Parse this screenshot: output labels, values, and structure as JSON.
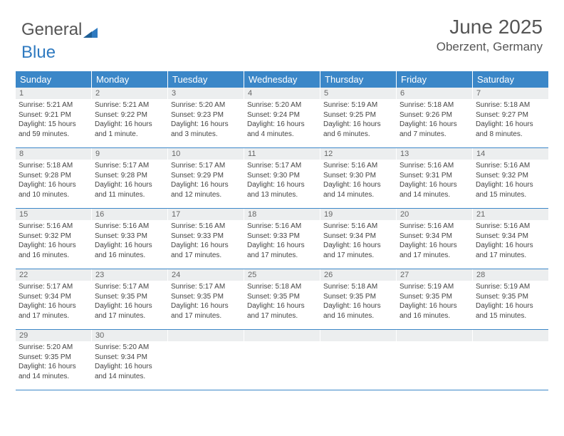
{
  "logo": {
    "part1": "General",
    "part2": "Blue",
    "tri_color": "#2f7ac0"
  },
  "header": {
    "title": "June 2025",
    "location": "Oberzent, Germany"
  },
  "colors": {
    "header_bg": "#3b87c8",
    "header_text": "#ffffff",
    "daynum_bg": "#eceeef",
    "daynum_text": "#666666",
    "body_text": "#444444",
    "rule": "#3b87c8"
  },
  "weekdays": [
    "Sunday",
    "Monday",
    "Tuesday",
    "Wednesday",
    "Thursday",
    "Friday",
    "Saturday"
  ],
  "days": [
    {
      "n": "1",
      "sr": "5:21 AM",
      "ss": "9:21 PM",
      "dl": "15 hours and 59 minutes."
    },
    {
      "n": "2",
      "sr": "5:21 AM",
      "ss": "9:22 PM",
      "dl": "16 hours and 1 minute."
    },
    {
      "n": "3",
      "sr": "5:20 AM",
      "ss": "9:23 PM",
      "dl": "16 hours and 3 minutes."
    },
    {
      "n": "4",
      "sr": "5:20 AM",
      "ss": "9:24 PM",
      "dl": "16 hours and 4 minutes."
    },
    {
      "n": "5",
      "sr": "5:19 AM",
      "ss": "9:25 PM",
      "dl": "16 hours and 6 minutes."
    },
    {
      "n": "6",
      "sr": "5:18 AM",
      "ss": "9:26 PM",
      "dl": "16 hours and 7 minutes."
    },
    {
      "n": "7",
      "sr": "5:18 AM",
      "ss": "9:27 PM",
      "dl": "16 hours and 8 minutes."
    },
    {
      "n": "8",
      "sr": "5:18 AM",
      "ss": "9:28 PM",
      "dl": "16 hours and 10 minutes."
    },
    {
      "n": "9",
      "sr": "5:17 AM",
      "ss": "9:28 PM",
      "dl": "16 hours and 11 minutes."
    },
    {
      "n": "10",
      "sr": "5:17 AM",
      "ss": "9:29 PM",
      "dl": "16 hours and 12 minutes."
    },
    {
      "n": "11",
      "sr": "5:17 AM",
      "ss": "9:30 PM",
      "dl": "16 hours and 13 minutes."
    },
    {
      "n": "12",
      "sr": "5:16 AM",
      "ss": "9:30 PM",
      "dl": "16 hours and 14 minutes."
    },
    {
      "n": "13",
      "sr": "5:16 AM",
      "ss": "9:31 PM",
      "dl": "16 hours and 14 minutes."
    },
    {
      "n": "14",
      "sr": "5:16 AM",
      "ss": "9:32 PM",
      "dl": "16 hours and 15 minutes."
    },
    {
      "n": "15",
      "sr": "5:16 AM",
      "ss": "9:32 PM",
      "dl": "16 hours and 16 minutes."
    },
    {
      "n": "16",
      "sr": "5:16 AM",
      "ss": "9:33 PM",
      "dl": "16 hours and 16 minutes."
    },
    {
      "n": "17",
      "sr": "5:16 AM",
      "ss": "9:33 PM",
      "dl": "16 hours and 17 minutes."
    },
    {
      "n": "18",
      "sr": "5:16 AM",
      "ss": "9:33 PM",
      "dl": "16 hours and 17 minutes."
    },
    {
      "n": "19",
      "sr": "5:16 AM",
      "ss": "9:34 PM",
      "dl": "16 hours and 17 minutes."
    },
    {
      "n": "20",
      "sr": "5:16 AM",
      "ss": "9:34 PM",
      "dl": "16 hours and 17 minutes."
    },
    {
      "n": "21",
      "sr": "5:16 AM",
      "ss": "9:34 PM",
      "dl": "16 hours and 17 minutes."
    },
    {
      "n": "22",
      "sr": "5:17 AM",
      "ss": "9:34 PM",
      "dl": "16 hours and 17 minutes."
    },
    {
      "n": "23",
      "sr": "5:17 AM",
      "ss": "9:35 PM",
      "dl": "16 hours and 17 minutes."
    },
    {
      "n": "24",
      "sr": "5:17 AM",
      "ss": "9:35 PM",
      "dl": "16 hours and 17 minutes."
    },
    {
      "n": "25",
      "sr": "5:18 AM",
      "ss": "9:35 PM",
      "dl": "16 hours and 17 minutes."
    },
    {
      "n": "26",
      "sr": "5:18 AM",
      "ss": "9:35 PM",
      "dl": "16 hours and 16 minutes."
    },
    {
      "n": "27",
      "sr": "5:19 AM",
      "ss": "9:35 PM",
      "dl": "16 hours and 16 minutes."
    },
    {
      "n": "28",
      "sr": "5:19 AM",
      "ss": "9:35 PM",
      "dl": "16 hours and 15 minutes."
    },
    {
      "n": "29",
      "sr": "5:20 AM",
      "ss": "9:35 PM",
      "dl": "16 hours and 14 minutes."
    },
    {
      "n": "30",
      "sr": "5:20 AM",
      "ss": "9:34 PM",
      "dl": "16 hours and 14 minutes."
    }
  ],
  "labels": {
    "sunrise": "Sunrise:",
    "sunset": "Sunset:",
    "daylight": "Daylight:"
  }
}
